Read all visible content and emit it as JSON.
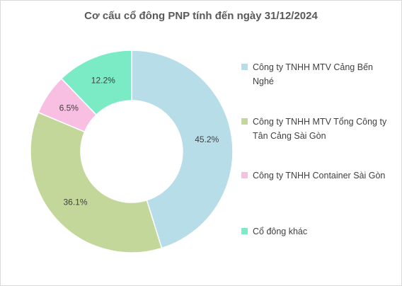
{
  "chart_data": {
    "type": "donut",
    "title": "Cơ cấu cổ đông PNP tính đến ngày 31/12/2024",
    "categories": [
      "Công ty TNHH MTV Cảng Bến Nghé",
      "Công ty TNHH MTV Tổng Công ty Tân Cảng Sài Gòn",
      "Công ty TNHH Container Sài Gòn",
      "Cổ đông khác"
    ],
    "values": [
      45.2,
      36.1,
      6.5,
      12.2
    ],
    "value_labels": [
      "45.2%",
      "36.1%",
      "6.5%",
      "12.2%"
    ],
    "colors": [
      "#b7dde8",
      "#c4d79b",
      "#f8bfe3",
      "#7aebc5"
    ],
    "legend": "right"
  }
}
